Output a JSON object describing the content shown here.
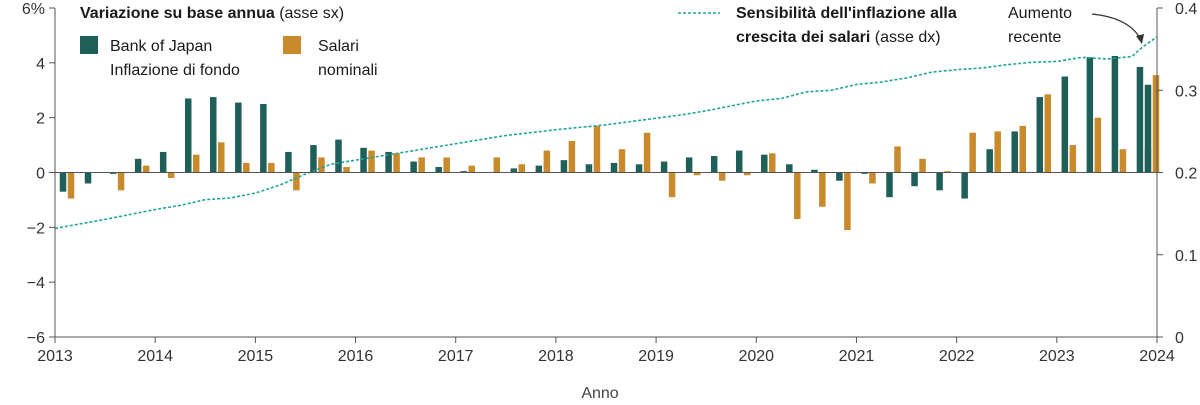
{
  "chart_data": {
    "type": "bar",
    "xlabel": "Anno",
    "x_ticks": [
      "2013",
      "2014",
      "2015",
      "2016",
      "2017",
      "2018",
      "2019",
      "2020",
      "2021",
      "2022",
      "2023",
      "2024"
    ],
    "y_left": {
      "min": -6,
      "max": 6,
      "ticks": [
        "6%",
        "4",
        "2",
        "0",
        "−2",
        "−4",
        "−6"
      ]
    },
    "y_right": {
      "min": 0,
      "max": 0.4,
      "ticks": [
        "0.4",
        "0.3",
        "0.2",
        "0.1",
        "0"
      ]
    },
    "legend": {
      "bars_title_bold": "Variazione su base annua",
      "bars_title_rest": " (asse sx)",
      "line_title_bold_1": "Sensibilità dell'inflazione alla",
      "line_title_bold_2": "crescita dei salari",
      "line_title_rest": " (asse dx)",
      "series1_line1": "Bank of Japan",
      "series1_line2": "Inflazione di fondo",
      "series2_line1": "Salari",
      "series2_line2": "nominali"
    },
    "annotation": {
      "line1": "Aumento",
      "line2": "recente"
    },
    "colors": {
      "core": "#1e5f5a",
      "wages": "#c98a2b",
      "line": "#1ea59a",
      "axis": "#555555"
    },
    "bars": {
      "x": [
        2013.0,
        2013.25,
        2013.5,
        2013.75,
        2014.0,
        2014.25,
        2014.5,
        2014.75,
        2015.0,
        2015.25,
        2015.5,
        2015.75,
        2016.0,
        2016.25,
        2016.5,
        2016.75,
        2017.0,
        2017.25,
        2017.5,
        2017.75,
        2018.0,
        2018.25,
        2018.5,
        2018.75,
        2019.0,
        2019.25,
        2019.5,
        2019.75,
        2020.0,
        2020.25,
        2020.5,
        2020.75,
        2021.0,
        2021.25,
        2021.5,
        2021.75,
        2022.0,
        2022.25,
        2022.5,
        2022.75,
        2023.0,
        2023.25,
        2023.5,
        2023.75
      ],
      "core": [
        -0.7,
        -0.4,
        -0.05,
        0.5,
        0.75,
        2.7,
        2.75,
        2.55,
        2.5,
        0.75,
        1.0,
        1.2,
        0.9,
        0.75,
        0.4,
        0.2,
        0.05,
        0.0,
        0.15,
        0.25,
        0.45,
        0.3,
        0.35,
        0.3,
        0.4,
        0.55,
        0.6,
        0.8,
        0.65,
        0.3,
        0.1,
        -0.3,
        -0.05,
        -0.9,
        -0.5,
        -0.65,
        -0.95,
        0.85,
        1.5,
        2.75,
        3.5,
        4.2,
        4.25,
        3.85
      ],
      "wages": [
        -0.95,
        0.0,
        -0.65,
        0.25,
        -0.2,
        0.65,
        1.1,
        0.35,
        0.35,
        -0.65,
        0.55,
        0.2,
        0.8,
        0.7,
        0.55,
        0.55,
        0.25,
        0.55,
        0.3,
        0.8,
        1.15,
        1.7,
        0.85,
        1.45,
        -0.9,
        -0.1,
        -0.3,
        -0.1,
        0.7,
        -1.7,
        -1.25,
        -2.1,
        -0.4,
        0.95,
        0.5,
        0.05,
        1.45,
        1.5,
        1.7,
        2.85,
        1.0,
        2.0,
        0.85,
        0.9
      ]
    },
    "extra_bars": {
      "x": 2023.95,
      "core": 3.2,
      "wages": 3.55
    },
    "line": {
      "x": [
        2013.0,
        2013.5,
        2014.0,
        2014.25,
        2014.5,
        2014.75,
        2015.0,
        2015.25,
        2015.5,
        2015.75,
        2016.0,
        2016.5,
        2017.0,
        2017.25,
        2017.5,
        2018.0,
        2018.5,
        2019.0,
        2019.25,
        2019.5,
        2020.0,
        2020.25,
        2020.5,
        2020.75,
        2021.0,
        2021.25,
        2021.5,
        2021.75,
        2022.0,
        2022.25,
        2022.5,
        2022.75,
        2023.0,
        2023.25,
        2023.5,
        2023.75,
        2023.85,
        2024.0
      ],
      "y": [
        0.132,
        0.143,
        0.155,
        0.16,
        0.167,
        0.169,
        0.175,
        0.185,
        0.198,
        0.21,
        0.215,
        0.225,
        0.235,
        0.24,
        0.245,
        0.252,
        0.258,
        0.266,
        0.27,
        0.275,
        0.287,
        0.29,
        0.298,
        0.3,
        0.307,
        0.31,
        0.315,
        0.322,
        0.325,
        0.327,
        0.331,
        0.334,
        0.335,
        0.34,
        0.338,
        0.341,
        0.352,
        0.365
      ]
    }
  }
}
